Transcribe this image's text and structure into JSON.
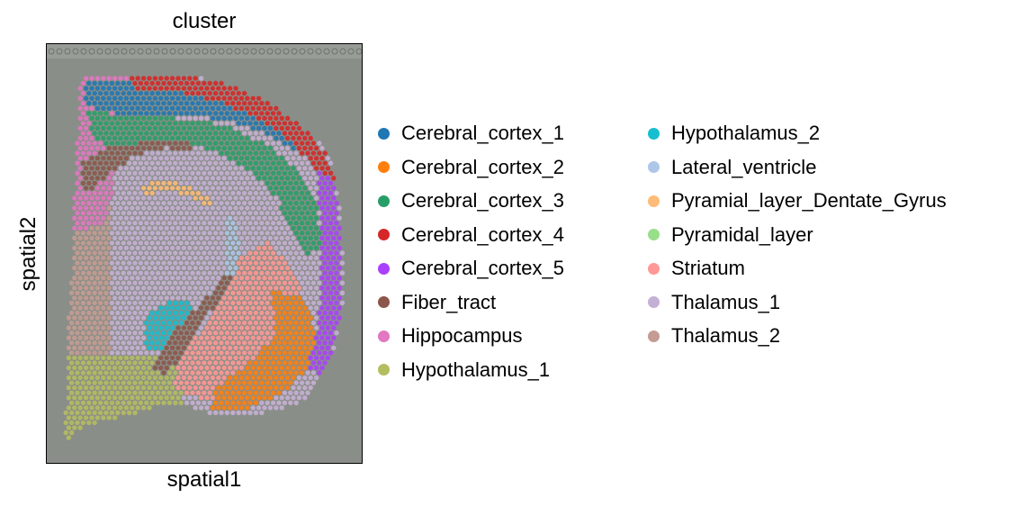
{
  "chart_data": {
    "type": "scatter",
    "title": "cluster",
    "xlabel": "spatial1",
    "ylabel": "spatial2",
    "xticks": [],
    "yticks": [],
    "grid": false,
    "legend_position": "right",
    "background": "tissue-image",
    "tissue_color": "#848983",
    "categories": [
      {
        "name": "Cerebral_cortex_1",
        "color": "#1f77b4"
      },
      {
        "name": "Cerebral_cortex_2",
        "color": "#ff7f0e"
      },
      {
        "name": "Cerebral_cortex_3",
        "color": "#279e68"
      },
      {
        "name": "Cerebral_cortex_4",
        "color": "#d62728"
      },
      {
        "name": "Cerebral_cortex_5",
        "color": "#aa40fc"
      },
      {
        "name": "Fiber_tract",
        "color": "#8c564b"
      },
      {
        "name": "Hippocampus",
        "color": "#e377c2"
      },
      {
        "name": "Hypothalamus_1",
        "color": "#b5bd61"
      },
      {
        "name": "Hypothalamus_2",
        "color": "#17becf"
      },
      {
        "name": "Lateral_ventricle",
        "color": "#aec7e8"
      },
      {
        "name": "Pyramial_layer_Dentate_Gyrus",
        "color": "#ffbb78"
      },
      {
        "name": "Pyramidal_layer",
        "color": "#98df8a"
      },
      {
        "name": "Striatum",
        "color": "#ff9896"
      },
      {
        "name": "Thalamus_1",
        "color": "#c5b0d5"
      },
      {
        "name": "Thalamus_2",
        "color": "#c49c94"
      }
    ]
  }
}
